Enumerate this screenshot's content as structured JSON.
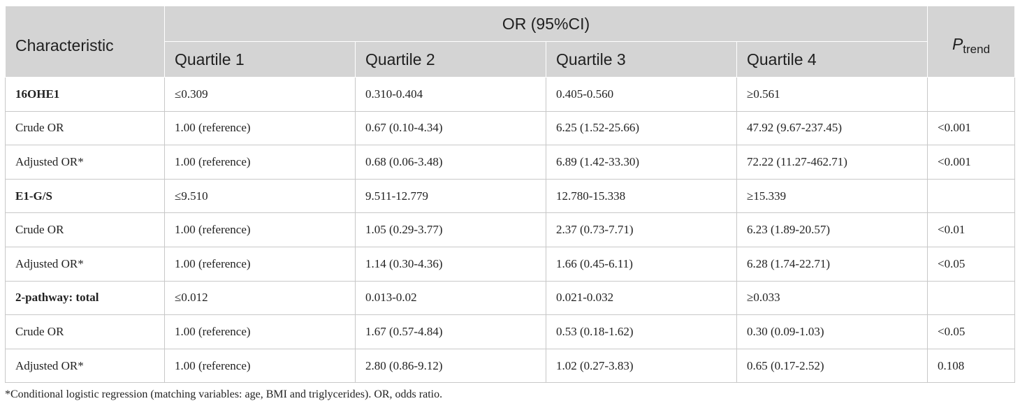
{
  "table": {
    "header": {
      "characteristic": "Characteristic",
      "or_group": "OR (95%CI)",
      "ptrend_main": "P",
      "ptrend_sub": "trend",
      "quartiles": [
        "Quartile 1",
        "Quartile 2",
        "Quartile 3",
        "Quartile 4"
      ]
    },
    "rows": [
      {
        "cells": [
          "16OHE1",
          "≤0.309",
          "0.310-0.404",
          "0.405-0.560",
          "≥0.561",
          ""
        ]
      },
      {
        "cells": [
          "Crude OR",
          "1.00 (reference)",
          "0.67 (0.10-4.34)",
          "6.25 (1.52-25.66)",
          "47.92 (9.67-237.45)",
          "<0.001"
        ]
      },
      {
        "cells": [
          "Adjusted OR*",
          "1.00 (reference)",
          "0.68 (0.06-3.48)",
          "6.89 (1.42-33.30)",
          "72.22 (11.27-462.71)",
          "<0.001"
        ]
      },
      {
        "cells": [
          "E1-G/S",
          "≤9.510",
          "9.511-12.779",
          "12.780-15.338",
          "≥15.339",
          ""
        ]
      },
      {
        "cells": [
          "Crude OR",
          "1.00 (reference)",
          "1.05 (0.29-3.77)",
          "2.37 (0.73-7.71)",
          "6.23 (1.89-20.57)",
          "<0.01"
        ]
      },
      {
        "cells": [
          "Adjusted OR*",
          "1.00 (reference)",
          "1.14 (0.30-4.36)",
          "1.66 (0.45-6.11)",
          "6.28 (1.74-22.71)",
          "<0.05"
        ]
      },
      {
        "cells": [
          "2-pathway: total",
          "≤0.012",
          "0.013-0.02",
          "0.021-0.032",
          "≥0.033",
          ""
        ]
      },
      {
        "cells": [
          "Crude OR",
          "1.00 (reference)",
          "1.67 (0.57-4.84)",
          "0.53 (0.18-1.62)",
          "0.30 (0.09-1.03)",
          "<0.05"
        ]
      },
      {
        "cells": [
          "Adjusted OR*",
          "1.00 (reference)",
          "2.80 (0.86-9.12)",
          "1.02 (0.27-3.83)",
          "0.65 (0.17-2.52)",
          "0.108"
        ]
      }
    ]
  },
  "footnote": "*Conditional logistic regression (matching variables: age, BMI and triglycerides). OR, odds ratio."
}
